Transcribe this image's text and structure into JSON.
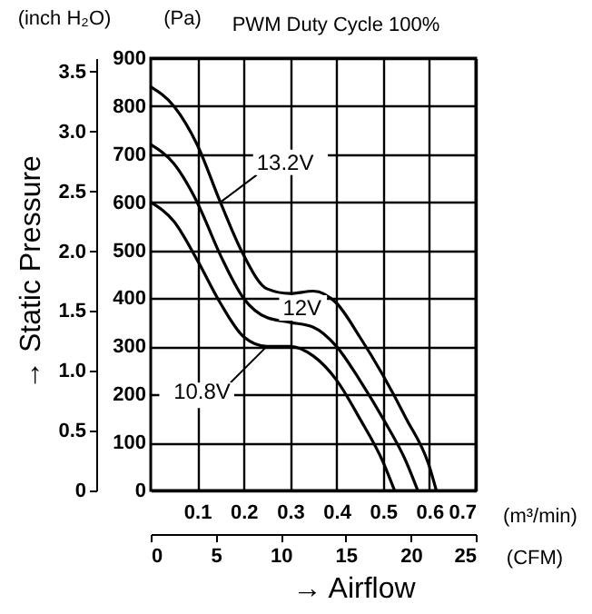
{
  "chart_data": {
    "type": "line",
    "title": "PWM Duty Cycle 100%",
    "xlabel": "(m³/min)",
    "ylabel": "(Pa)",
    "x2label": "(CFM)",
    "y2label": "(inch H₂O)",
    "annotations": [
      "→ Static Pressure",
      "→ Airflow"
    ],
    "xlim": [
      0,
      0.7
    ],
    "xticks": [
      0.1,
      0.2,
      0.3,
      0.4,
      0.5,
      0.6,
      0.7
    ],
    "ylim": [
      0,
      900
    ],
    "yticks": [
      0,
      100,
      200,
      300,
      400,
      500,
      600,
      700,
      800,
      900
    ],
    "x2lim": [
      0,
      25
    ],
    "x2ticks": [
      0,
      5,
      10,
      15,
      20,
      25
    ],
    "y2lim": [
      0,
      3.613
    ],
    "y2ticks": [
      0,
      0.5,
      {
        "value": 1,
        "label": "1.0"
      },
      1.5,
      {
        "value": 2,
        "label": "2.0"
      },
      2.5,
      {
        "value": 3,
        "label": "3.0"
      },
      3.5
    ],
    "grid": true,
    "marker": "none",
    "line_style": "solid",
    "series": [
      {
        "name": "13.2V",
        "color": "#000000",
        "x": [
          0,
          0.05,
          0.1,
          0.15,
          0.2,
          0.25,
          0.3,
          0.35,
          0.4,
          0.45,
          0.5,
          0.55,
          0.6,
          0.615
        ],
        "values": [
          840,
          800,
          720,
          600,
          490,
          420,
          410,
          415,
          390,
          320,
          240,
          150,
          50,
          0
        ]
      },
      {
        "name": "12V",
        "color": "#000000",
        "x": [
          0,
          0.05,
          0.1,
          0.15,
          0.2,
          0.25,
          0.3,
          0.35,
          0.4,
          0.45,
          0.5,
          0.55,
          0.575
        ],
        "values": [
          720,
          680,
          600,
          490,
          400,
          360,
          350,
          340,
          300,
          230,
          150,
          60,
          0
        ]
      },
      {
        "name": "10.8V",
        "color": "#000000",
        "x": [
          0,
          0.05,
          0.1,
          0.15,
          0.2,
          0.25,
          0.3,
          0.35,
          0.4,
          0.45,
          0.5,
          0.525
        ],
        "values": [
          600,
          560,
          480,
          390,
          320,
          300,
          300,
          280,
          230,
          150,
          60,
          0
        ]
      }
    ]
  }
}
